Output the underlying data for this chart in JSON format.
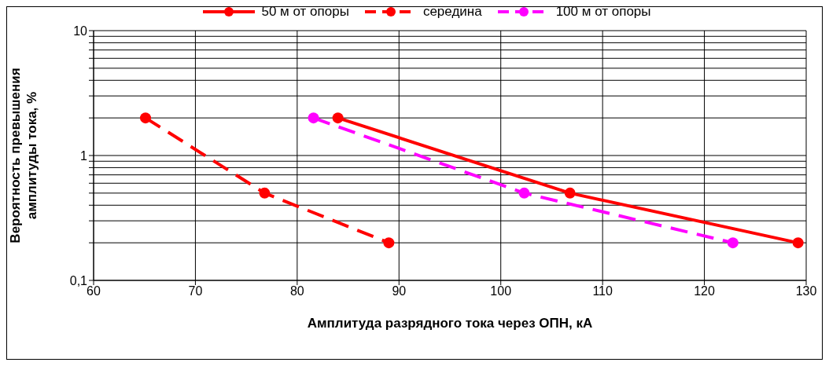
{
  "chart_data": {
    "type": "line",
    "xlabel": "Амплитуда разрядного тока через ОПН, кА",
    "ylabel": "Вероятность превышения амплитуды тока, %",
    "series": [
      {
        "name": "50 м от опоры",
        "color": "#ff0000",
        "line_style": "solid",
        "x": [
          84.0,
          106.8,
          129.2
        ],
        "values": [
          2,
          0.5,
          0.2
        ]
      },
      {
        "name": "середина",
        "color": "#ff0000",
        "line_style": "dashed",
        "x": [
          65.1,
          76.8,
          89.0
        ],
        "values": [
          2,
          0.5,
          0.2
        ]
      },
      {
        "name": "100 м от опоры",
        "color": "#ff00ff",
        "line_style": "dashed",
        "x": [
          81.6,
          102.3,
          122.8
        ],
        "values": [
          2,
          0.5,
          0.2
        ]
      }
    ],
    "xlim": [
      60,
      130
    ],
    "xticks": [
      60,
      70,
      80,
      90,
      100,
      110,
      120,
      130
    ],
    "ylim": [
      0.1,
      10
    ],
    "yticks": [
      {
        "value": 0.1,
        "label": "0,1"
      },
      {
        "value": 0.2,
        "label": null
      },
      {
        "value": 0.3,
        "label": null
      },
      {
        "value": 0.4,
        "label": null
      },
      {
        "value": 0.5,
        "label": null
      },
      {
        "value": 0.6,
        "label": null
      },
      {
        "value": 0.7,
        "label": null
      },
      {
        "value": 0.8,
        "label": null
      },
      {
        "value": 0.9,
        "label": null
      },
      {
        "value": 1,
        "label": "1"
      },
      {
        "value": 2,
        "label": null
      },
      {
        "value": 3,
        "label": null
      },
      {
        "value": 4,
        "label": null
      },
      {
        "value": 5,
        "label": null
      },
      {
        "value": 6,
        "label": null
      },
      {
        "value": 7,
        "label": null
      },
      {
        "value": 8,
        "label": null
      },
      {
        "value": 9,
        "label": null
      },
      {
        "value": 10,
        "label": "10"
      }
    ],
    "log": true,
    "grid": true,
    "legend": "top",
    "marker": "circle"
  }
}
